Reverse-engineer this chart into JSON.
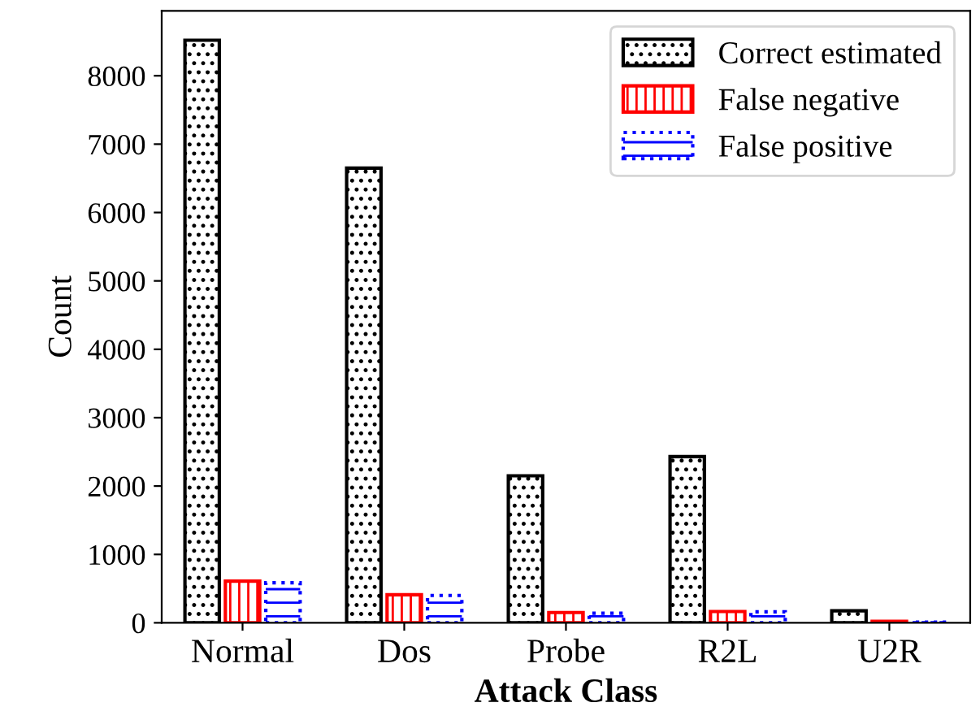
{
  "chart_data": {
    "type": "bar",
    "xlabel": "Attack Class",
    "ylabel": "Count",
    "categories": [
      "Normal",
      "Dos",
      "Probe",
      "R2L",
      "U2R"
    ],
    "series": [
      {
        "name": "Correct estimated",
        "color": "#000000",
        "values": [
          8520,
          6650,
          2150,
          2430,
          175
        ]
      },
      {
        "name": "False negative",
        "color": "#ff0000",
        "values": [
          610,
          410,
          150,
          165,
          20
        ]
      },
      {
        "name": "False positive",
        "color": "#0000ff",
        "values": [
          585,
          400,
          140,
          160,
          10
        ]
      }
    ],
    "ylim": [
      0,
      8950
    ],
    "yticks": [
      0,
      1000,
      2000,
      3000,
      4000,
      5000,
      6000,
      7000,
      8000
    ],
    "grid": false,
    "legend": "top right"
  }
}
